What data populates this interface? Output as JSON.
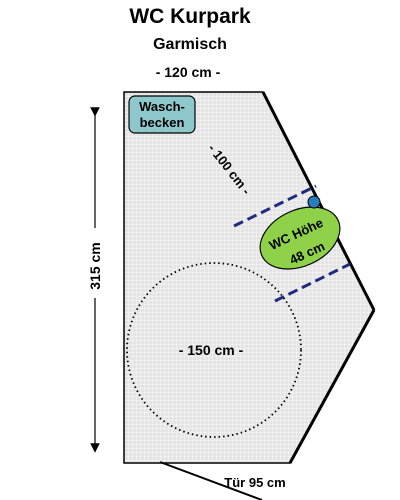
{
  "header": {
    "title": "WC Kurpark",
    "subtitle": "Garmisch"
  },
  "dimensions": {
    "width_label": "- 120 cm -",
    "height_label": "315 cm",
    "door_label": "Tür 95 cm",
    "distance_label": "- 100 cm -",
    "turning_circle_label": "- 150 cm -"
  },
  "fixtures": {
    "sink": {
      "line1": "Wasch-",
      "line2": "becken"
    },
    "toilet": {
      "line1": "WC Höhe",
      "line2": "48 cm"
    }
  },
  "colors": {
    "floor_fill": "#e4e4e4",
    "grid_line": "#ffffff",
    "wall": "#000000",
    "sink_fill": "#8fc8cc",
    "toilet_fill": "#8fd24a",
    "marker_dot": "#2a7ac0",
    "dash_navy": "#1f2b80"
  },
  "icons": {
    "marker": "blue-dot",
    "arrows": "double-headed-arrow"
  }
}
